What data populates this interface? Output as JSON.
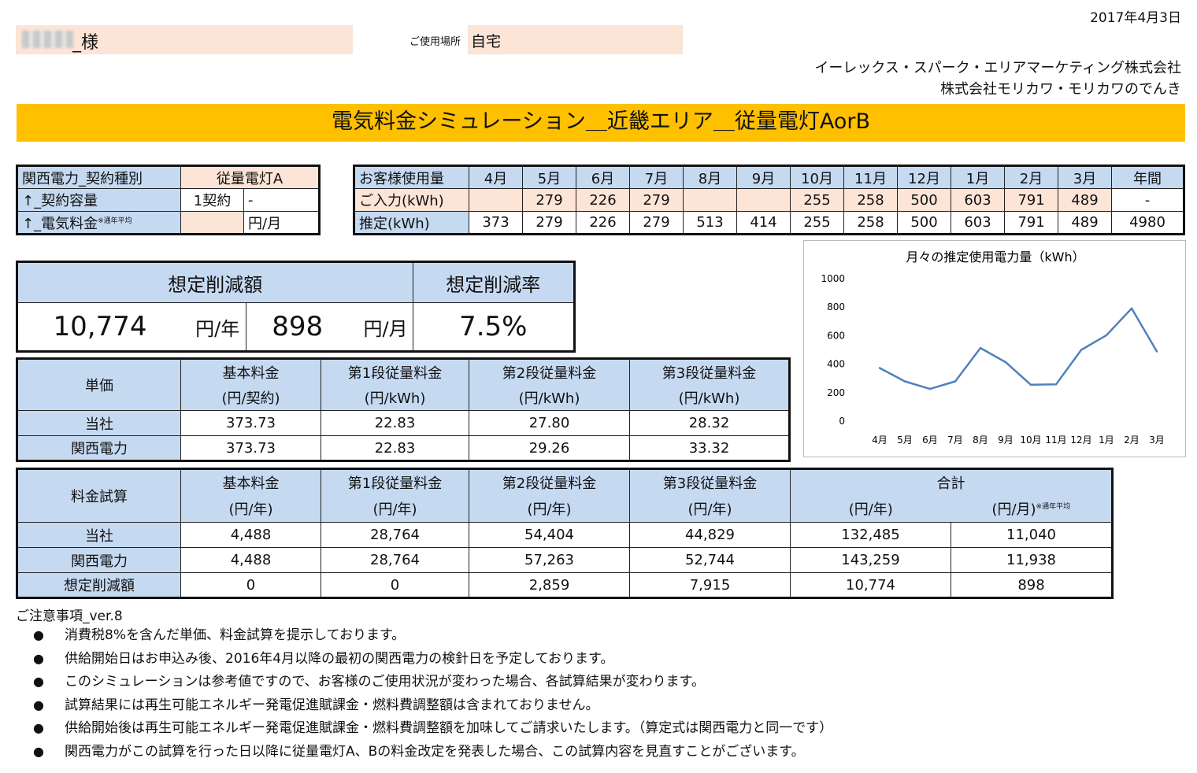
{
  "header": {
    "date": "2017年4月3日",
    "name_suffix": "_様",
    "location_label": "ご使用場所",
    "location_value": "自宅",
    "company_line1": "イーレックス・スパーク・エリアマーケティング株式会社",
    "company_line2": "株式会社モリカワ・モリカワのでんき",
    "title": "電気料金シミュレーション＿近畿エリア＿従量電灯AorB"
  },
  "contract": {
    "rows": [
      {
        "label": "関西電力_契約種別",
        "value": "従量電灯A",
        "unit": ""
      },
      {
        "label": "↑_契約容量",
        "value": "1契約",
        "unit": "-"
      },
      {
        "label": "↑_電気料金",
        "note": "※通年平均",
        "value": "",
        "unit": "円/月"
      }
    ]
  },
  "usage": {
    "header_label": "お客様使用量",
    "months": [
      "4月",
      "5月",
      "6月",
      "7月",
      "8月",
      "9月",
      "10月",
      "11月",
      "12月",
      "1月",
      "2月",
      "3月",
      "年間"
    ],
    "input_label": "ご入力(kWh)",
    "input": [
      "",
      "279",
      "226",
      "279",
      "",
      "",
      "255",
      "258",
      "500",
      "603",
      "791",
      "489",
      "-"
    ],
    "estimate_label": "推定(kWh)",
    "estimate": [
      "373",
      "279",
      "226",
      "279",
      "513",
      "414",
      "255",
      "258",
      "500",
      "603",
      "791",
      "489",
      "4980"
    ]
  },
  "saving": {
    "amount_label": "想定削減額",
    "rate_label": "想定削減率",
    "yearly_value": "10,774",
    "yearly_unit": "円/年",
    "monthly_value": "898",
    "monthly_unit": "円/月",
    "rate_value": "7.5%"
  },
  "unit_price": {
    "title": "単価",
    "headers": [
      [
        "基本料金",
        "(円/契約)"
      ],
      [
        "第1段従量料金",
        "(円/kWh)"
      ],
      [
        "第2段従量料金",
        "(円/kWh)"
      ],
      [
        "第3段従量料金",
        "(円/kWh)"
      ]
    ],
    "rows": [
      {
        "label": "当社",
        "values": [
          "373.73",
          "22.83",
          "27.80",
          "28.32"
        ]
      },
      {
        "label": "関西電力",
        "values": [
          "373.73",
          "22.83",
          "29.26",
          "33.32"
        ]
      }
    ]
  },
  "fee_calc": {
    "title": "料金試算",
    "headers": [
      [
        "基本料金",
        "(円/年)"
      ],
      [
        "第1段従量料金",
        "(円/年)"
      ],
      [
        "第2段従量料金",
        "(円/年)"
      ],
      [
        "第3段従量料金",
        "(円/年)"
      ]
    ],
    "total_label": "合計",
    "total_yearly_unit": "(円/年)",
    "total_monthly_unit": "(円/月)",
    "total_note": "※通年平均",
    "rows": [
      {
        "label": "当社",
        "values": [
          "4,488",
          "28,764",
          "54,404",
          "44,829",
          "132,485",
          "11,040"
        ]
      },
      {
        "label": "関西電力",
        "values": [
          "4,488",
          "28,764",
          "57,263",
          "52,744",
          "143,259",
          "11,938"
        ]
      },
      {
        "label": "想定削減額",
        "values": [
          "0",
          "0",
          "2,859",
          "7,915",
          "10,774",
          "898"
        ]
      }
    ]
  },
  "chart_data": {
    "type": "line",
    "title": "月々の推定使用電力量（kWh）",
    "categories": [
      "4月",
      "5月",
      "6月",
      "7月",
      "8月",
      "9月",
      "10月",
      "11月",
      "12月",
      "1月",
      "2月",
      "3月"
    ],
    "values": [
      373,
      279,
      226,
      279,
      513,
      414,
      255,
      258,
      500,
      603,
      791,
      489
    ],
    "ylim": [
      0,
      1000
    ],
    "yticks": [
      0,
      200,
      400,
      600,
      800,
      1000
    ],
    "color": "#4f81bd",
    "grid": false
  },
  "notes": {
    "title": "ご注意事項_ver.8",
    "bullet": "●",
    "items": [
      "消費税8%を含んだ単価、料金試算を提示しております。",
      "供給開始日はお申込み後、2016年4月以降の最初の関西電力の検針日を予定しております。",
      "このシミュレーションは参考値ですので、お客様のご使用状況が変わった場合、各試算結果が変わります。",
      "試算結果には再生可能エネルギー発電促進賦課金・燃料費調整額は含まれておりません。",
      "供給開始後は再生可能エネルギー発電促進賦課金・燃料費調整額を加味してご請求いたします。（算定式は関西電力と同一です）",
      "関西電力がこの試算を行った日以降に従量電灯A、Bの料金改定を発表した場合、この試算内容を見直すことがございます。"
    ]
  }
}
